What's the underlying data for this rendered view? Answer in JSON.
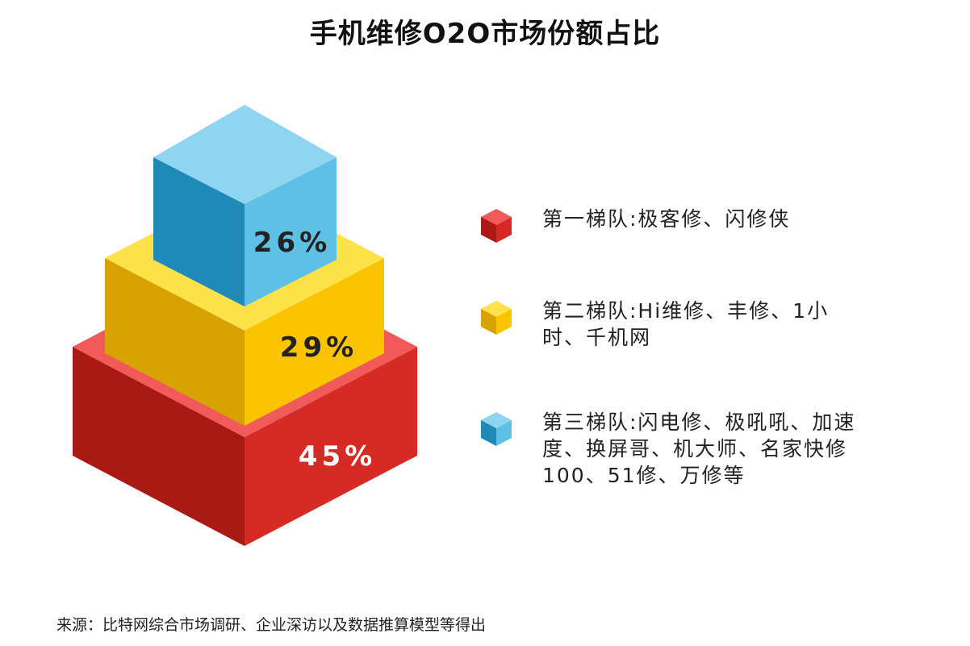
{
  "title": "手机维修O2O市场份额占比",
  "chart_data": {
    "type": "pie",
    "title": "手机维修O2O市场份额占比",
    "slices": [
      {
        "label": "第一梯队:极客修、闪修侠",
        "value": 45,
        "value_label": "45%",
        "color_front": "#d62a24",
        "color_side": "#aa1a14",
        "color_top": "#f25a5a",
        "text_color": "#ffffff"
      },
      {
        "label": "第二梯队:Hi维修、丰修、1小时、千机网",
        "value": 29,
        "value_label": "29%",
        "color_front": "#fbc400",
        "color_side": "#d8a200",
        "color_top": "#fde24a",
        "text_color": "#222222"
      },
      {
        "label": "第三梯队:闪电修、极吼吼、加速度、换屏哥、机大师、名家快修100、51修、万修等",
        "value": 26,
        "value_label": "26%",
        "color_front": "#5fc0e6",
        "color_side": "#1f8ab8",
        "color_top": "#8fd5f2",
        "text_color": "#222222"
      }
    ],
    "legend_position": "right"
  },
  "legend": [
    {
      "lines": [
        "第一梯队:极客修、闪修侠"
      ]
    },
    {
      "lines": [
        "第二梯队:Hi维修、丰修、1小",
        "时、千机网"
      ]
    },
    {
      "lines": [
        "第三梯队:闪电修、极吼吼、加速",
        "度、换屏哥、机大师、名家快修",
        "100、51修、万修等"
      ]
    }
  ],
  "source": "来源：比特网综合市场调研、企业深访以及数据推算模型等得出"
}
